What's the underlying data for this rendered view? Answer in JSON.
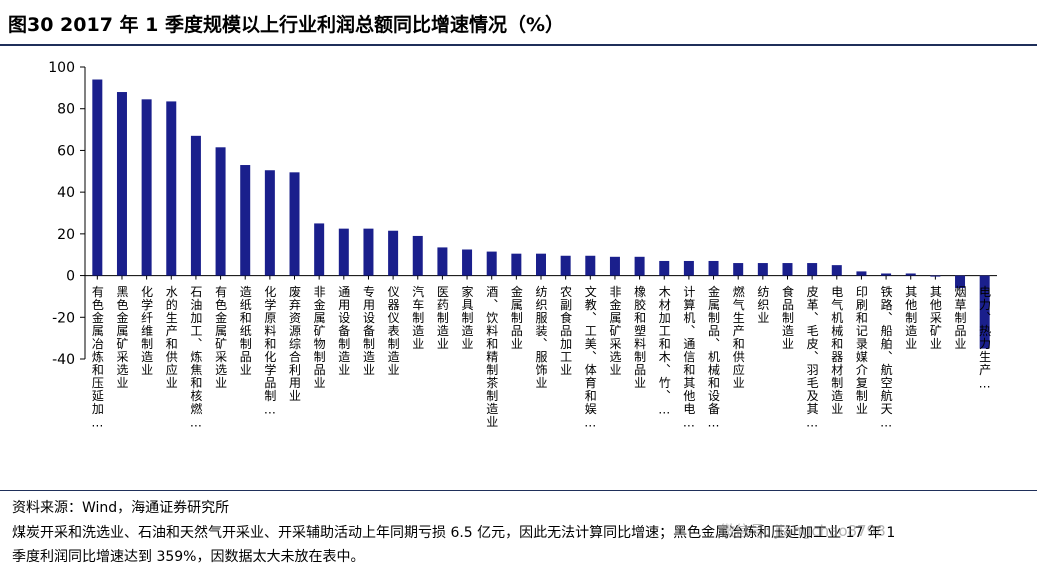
{
  "title": "图30 2017 年 1 季度规模以上行业利润总额同比增速情况（%）",
  "source": "资料来源：Wind，海通证券研究所",
  "note": "煤炭开采和洗选业、石油和天然气开采业、开采辅助活动上年同期亏损 6.5 亿元，因此无法计算同比增速；黑色金属冶炼和压延加工业 17 年 1 季度利润同比增速达到 359%，因数据太大未放在表中。",
  "watermark": "微信号: jiangchao8798",
  "colors": {
    "bar": "#1a1f8c",
    "rule": "#1f2f5a"
  },
  "chart_data": {
    "type": "bar",
    "title": "",
    "xlabel": "",
    "ylabel": "",
    "ylim": [
      -40,
      100
    ],
    "yticks": [
      -40,
      -20,
      0,
      20,
      40,
      60,
      80,
      100
    ],
    "grid": false,
    "categories": [
      "有色金属冶炼和压延加…",
      "黑色金属矿采选业",
      "化学纤维制造业",
      "水的生产和供应业",
      "石油加工、炼焦和核燃…",
      "有色金属矿采选业",
      "造纸和纸制品业",
      "化学原料和化学品制…",
      "废弃资源综合利用业",
      "非金属矿物制品业",
      "通用设备制造业",
      "专用设备制造业",
      "仪器仪表制造业",
      "汽车制造业",
      "医药制造业",
      "家具制造业",
      "酒、饮料和精制茶制造业",
      "金属制品业",
      "纺织服装、服饰业",
      "农副食品加工业",
      "文教、工美、体育和娱…",
      "非金属矿采选业",
      "橡胶和塑料制品业",
      "木材加工和木、竹、…",
      "计算机、通信和其他电…",
      "金属制品、机械和设备…",
      "燃气生产和供应业",
      "纺织业",
      "食品制造业",
      "皮革、毛皮、羽毛及其…",
      "电气机械和器材制造业",
      "印刷和记录媒介复制业",
      "铁路、船舶、航空航天…",
      "其他制造业",
      "其他采矿业",
      "烟草制品业",
      "电力、热力生产…"
    ],
    "values": [
      94,
      88,
      84.5,
      83.5,
      67,
      61.5,
      53,
      50.5,
      49.5,
      25,
      22.5,
      22.5,
      21.5,
      19,
      13.5,
      12.5,
      11.5,
      10.5,
      10.5,
      9.5,
      9.5,
      9,
      9,
      7,
      7,
      7,
      6,
      6,
      6,
      6,
      5,
      2,
      1,
      1,
      -0.5,
      -6,
      -35
    ]
  }
}
